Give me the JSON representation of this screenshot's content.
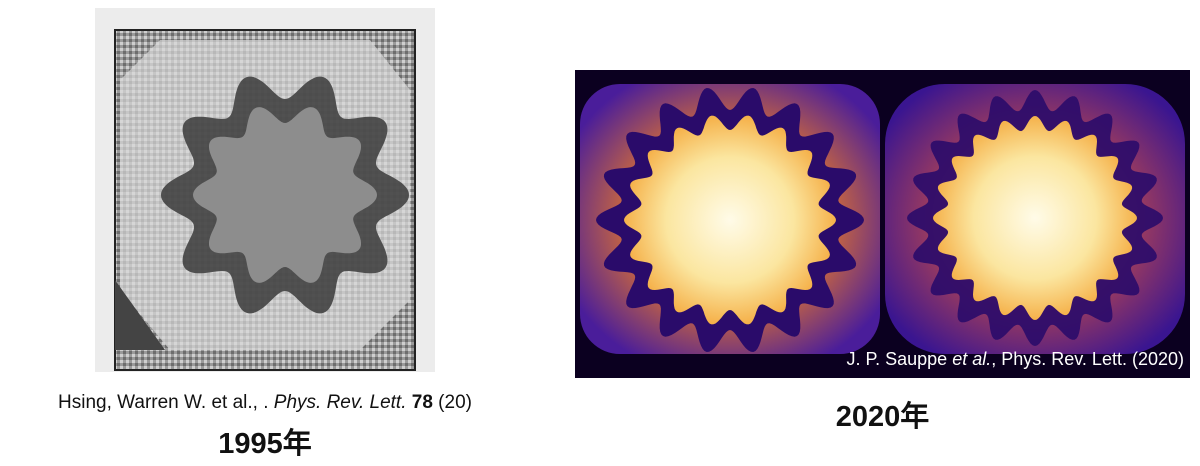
{
  "left": {
    "citation": {
      "authors": "Hsing, Warren W. et al., .",
      "journal": "Phys. Rev. Lett.",
      "volume": "78",
      "issue": "(20)"
    },
    "year": "1995年"
  },
  "right": {
    "citation": {
      "authors": "J. P. Sauppe",
      "etal": "et al.",
      "rest": ", Phys. Rev. Lett. (2020)"
    },
    "year": "2020年"
  }
}
